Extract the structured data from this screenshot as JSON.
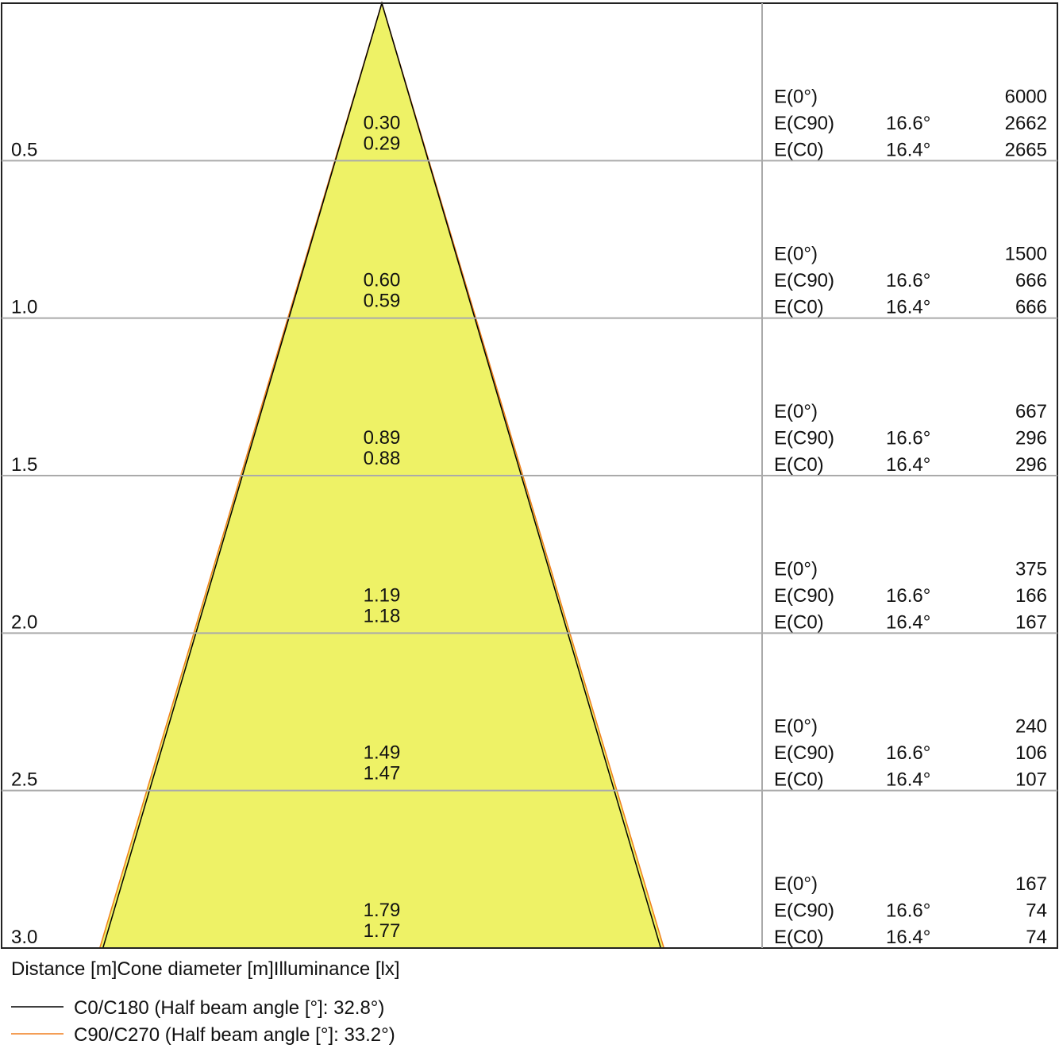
{
  "chart_data": {
    "type": "cone",
    "rows": [
      {
        "distance": "0.5",
        "diameters": [
          "0.30",
          "0.29"
        ],
        "illuminance": [
          {
            "name": "E(0°)",
            "value": "6000"
          },
          {
            "name": "E(C90)",
            "angle": "16.6°",
            "value": "2662"
          },
          {
            "name": "E(C0)",
            "angle": "16.4°",
            "value": "2665"
          }
        ]
      },
      {
        "distance": "1.0",
        "diameters": [
          "0.60",
          "0.59"
        ],
        "illuminance": [
          {
            "name": "E(0°)",
            "value": "1500"
          },
          {
            "name": "E(C90)",
            "angle": "16.6°",
            "value": "666"
          },
          {
            "name": "E(C0)",
            "angle": "16.4°",
            "value": "666"
          }
        ]
      },
      {
        "distance": "1.5",
        "diameters": [
          "0.89",
          "0.88"
        ],
        "illuminance": [
          {
            "name": "E(0°)",
            "value": "667"
          },
          {
            "name": "E(C90)",
            "angle": "16.6°",
            "value": "296"
          },
          {
            "name": "E(C0)",
            "angle": "16.4°",
            "value": "296"
          }
        ]
      },
      {
        "distance": "2.0",
        "diameters": [
          "1.19",
          "1.18"
        ],
        "illuminance": [
          {
            "name": "E(0°)",
            "value": "375"
          },
          {
            "name": "E(C90)",
            "angle": "16.6°",
            "value": "166"
          },
          {
            "name": "E(C0)",
            "angle": "16.4°",
            "value": "167"
          }
        ]
      },
      {
        "distance": "2.5",
        "diameters": [
          "1.49",
          "1.47"
        ],
        "illuminance": [
          {
            "name": "E(0°)",
            "value": "240"
          },
          {
            "name": "E(C90)",
            "angle": "16.6°",
            "value": "106"
          },
          {
            "name": "E(C0)",
            "angle": "16.4°",
            "value": "107"
          }
        ]
      },
      {
        "distance": "3.0",
        "diameters": [
          "1.79",
          "1.77"
        ],
        "illuminance": [
          {
            "name": "E(0°)",
            "value": "167"
          },
          {
            "name": "E(C90)",
            "angle": "16.6°",
            "value": "74"
          },
          {
            "name": "E(C0)",
            "angle": "16.4°",
            "value": "74"
          }
        ]
      }
    ],
    "axis_title": "Distance [m]Cone diameter [m]Illuminance [lx]",
    "fill": "#eef266",
    "series": [
      {
        "name": "C0/C180 (Half beam angle [°]: 32.8°)",
        "color": "#000000"
      },
      {
        "name": "C90/C270 (Half beam angle [°]: 33.2°)",
        "color": "#f07f1e"
      }
    ]
  }
}
